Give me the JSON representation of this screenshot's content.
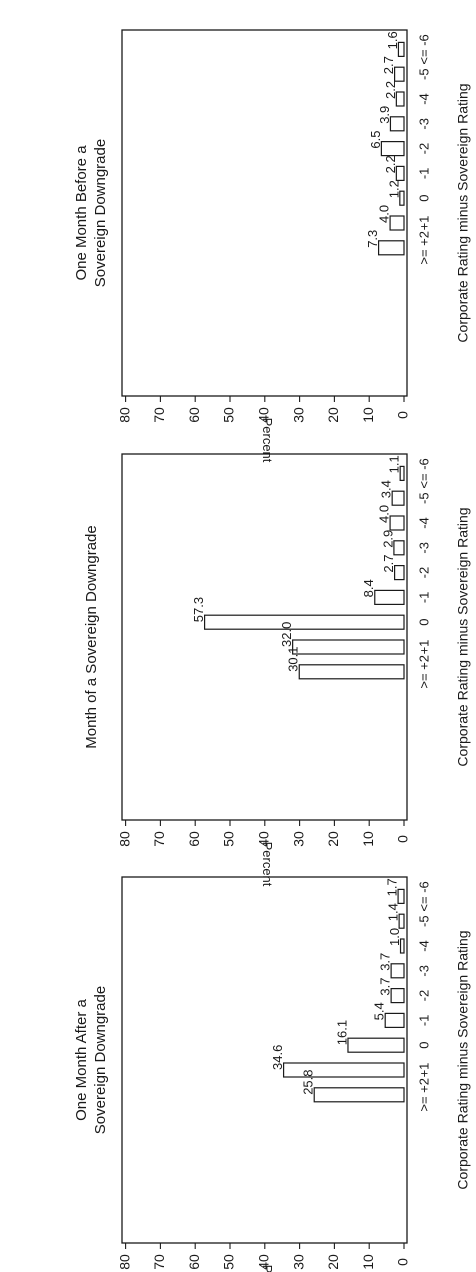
{
  "chart_data": [
    {
      "type": "bar",
      "title_lines": [
        "One Month Before a",
        "Sovereign Downgrade"
      ],
      "xlabel": "Corporate Rating minus Sovereign Rating",
      "ylabel": "Percent",
      "ylim": [
        0,
        85
      ],
      "yticks": [
        0,
        10,
        20,
        30,
        40,
        50,
        60,
        70,
        80
      ],
      "categories": [
        "<= -6",
        "-5",
        "-4",
        "-3",
        "-2",
        "-1",
        "0",
        "+1",
        ">= +2"
      ],
      "values": [
        1.6,
        2.7,
        2.2,
        3.9,
        6.5,
        2.2,
        1.2,
        4.0,
        7.3
      ],
      "value_labels": [
        "1.6",
        "2.7",
        "2.2",
        "3.9",
        "6.5",
        "2.2",
        "1.2",
        "4.0",
        "7.3"
      ]
    },
    {
      "type": "bar",
      "title_lines": [
        "Month of a Sovereign Downgrade"
      ],
      "xlabel": "Corporate Rating minus Sovereign Rating",
      "ylabel": "Percent",
      "ylim": [
        0,
        85
      ],
      "yticks": [
        0,
        10,
        20,
        30,
        40,
        50,
        60,
        70,
        80
      ],
      "categories": [
        "<= -6",
        "-5",
        "-4",
        "-3",
        "-2",
        "-1",
        "0",
        "+1",
        ">= +2"
      ],
      "values": [
        1.1,
        3.4,
        4.0,
        2.9,
        2.7,
        8.4,
        57.3,
        32.0,
        30.1
      ],
      "value_labels": [
        "1.1",
        "3.4",
        "4.0",
        "2.9",
        "2.7",
        "8.4",
        "57.3",
        "32.0",
        "30.1"
      ]
    },
    {
      "type": "bar",
      "title_lines": [
        "One Month After a",
        "Sovereign Downgrade"
      ],
      "xlabel": "Corporate Rating minus Sovereign Rating",
      "ylabel": "Percent",
      "ylim": [
        0,
        85
      ],
      "yticks": [
        0,
        10,
        20,
        30,
        40,
        50,
        60,
        70,
        80
      ],
      "categories": [
        "<= -6",
        "-5",
        "-4",
        "-3",
        "-2",
        "-1",
        "0",
        "+1",
        ">= +2"
      ],
      "values": [
        1.7,
        1.4,
        1.0,
        3.7,
        3.7,
        5.4,
        16.1,
        34.6,
        25.8
      ],
      "value_labels": [
        "1.7",
        "1.4",
        "1.0",
        "3.7",
        "3.7",
        "5.4",
        "16.1",
        "34.6",
        "25.8"
      ]
    }
  ]
}
